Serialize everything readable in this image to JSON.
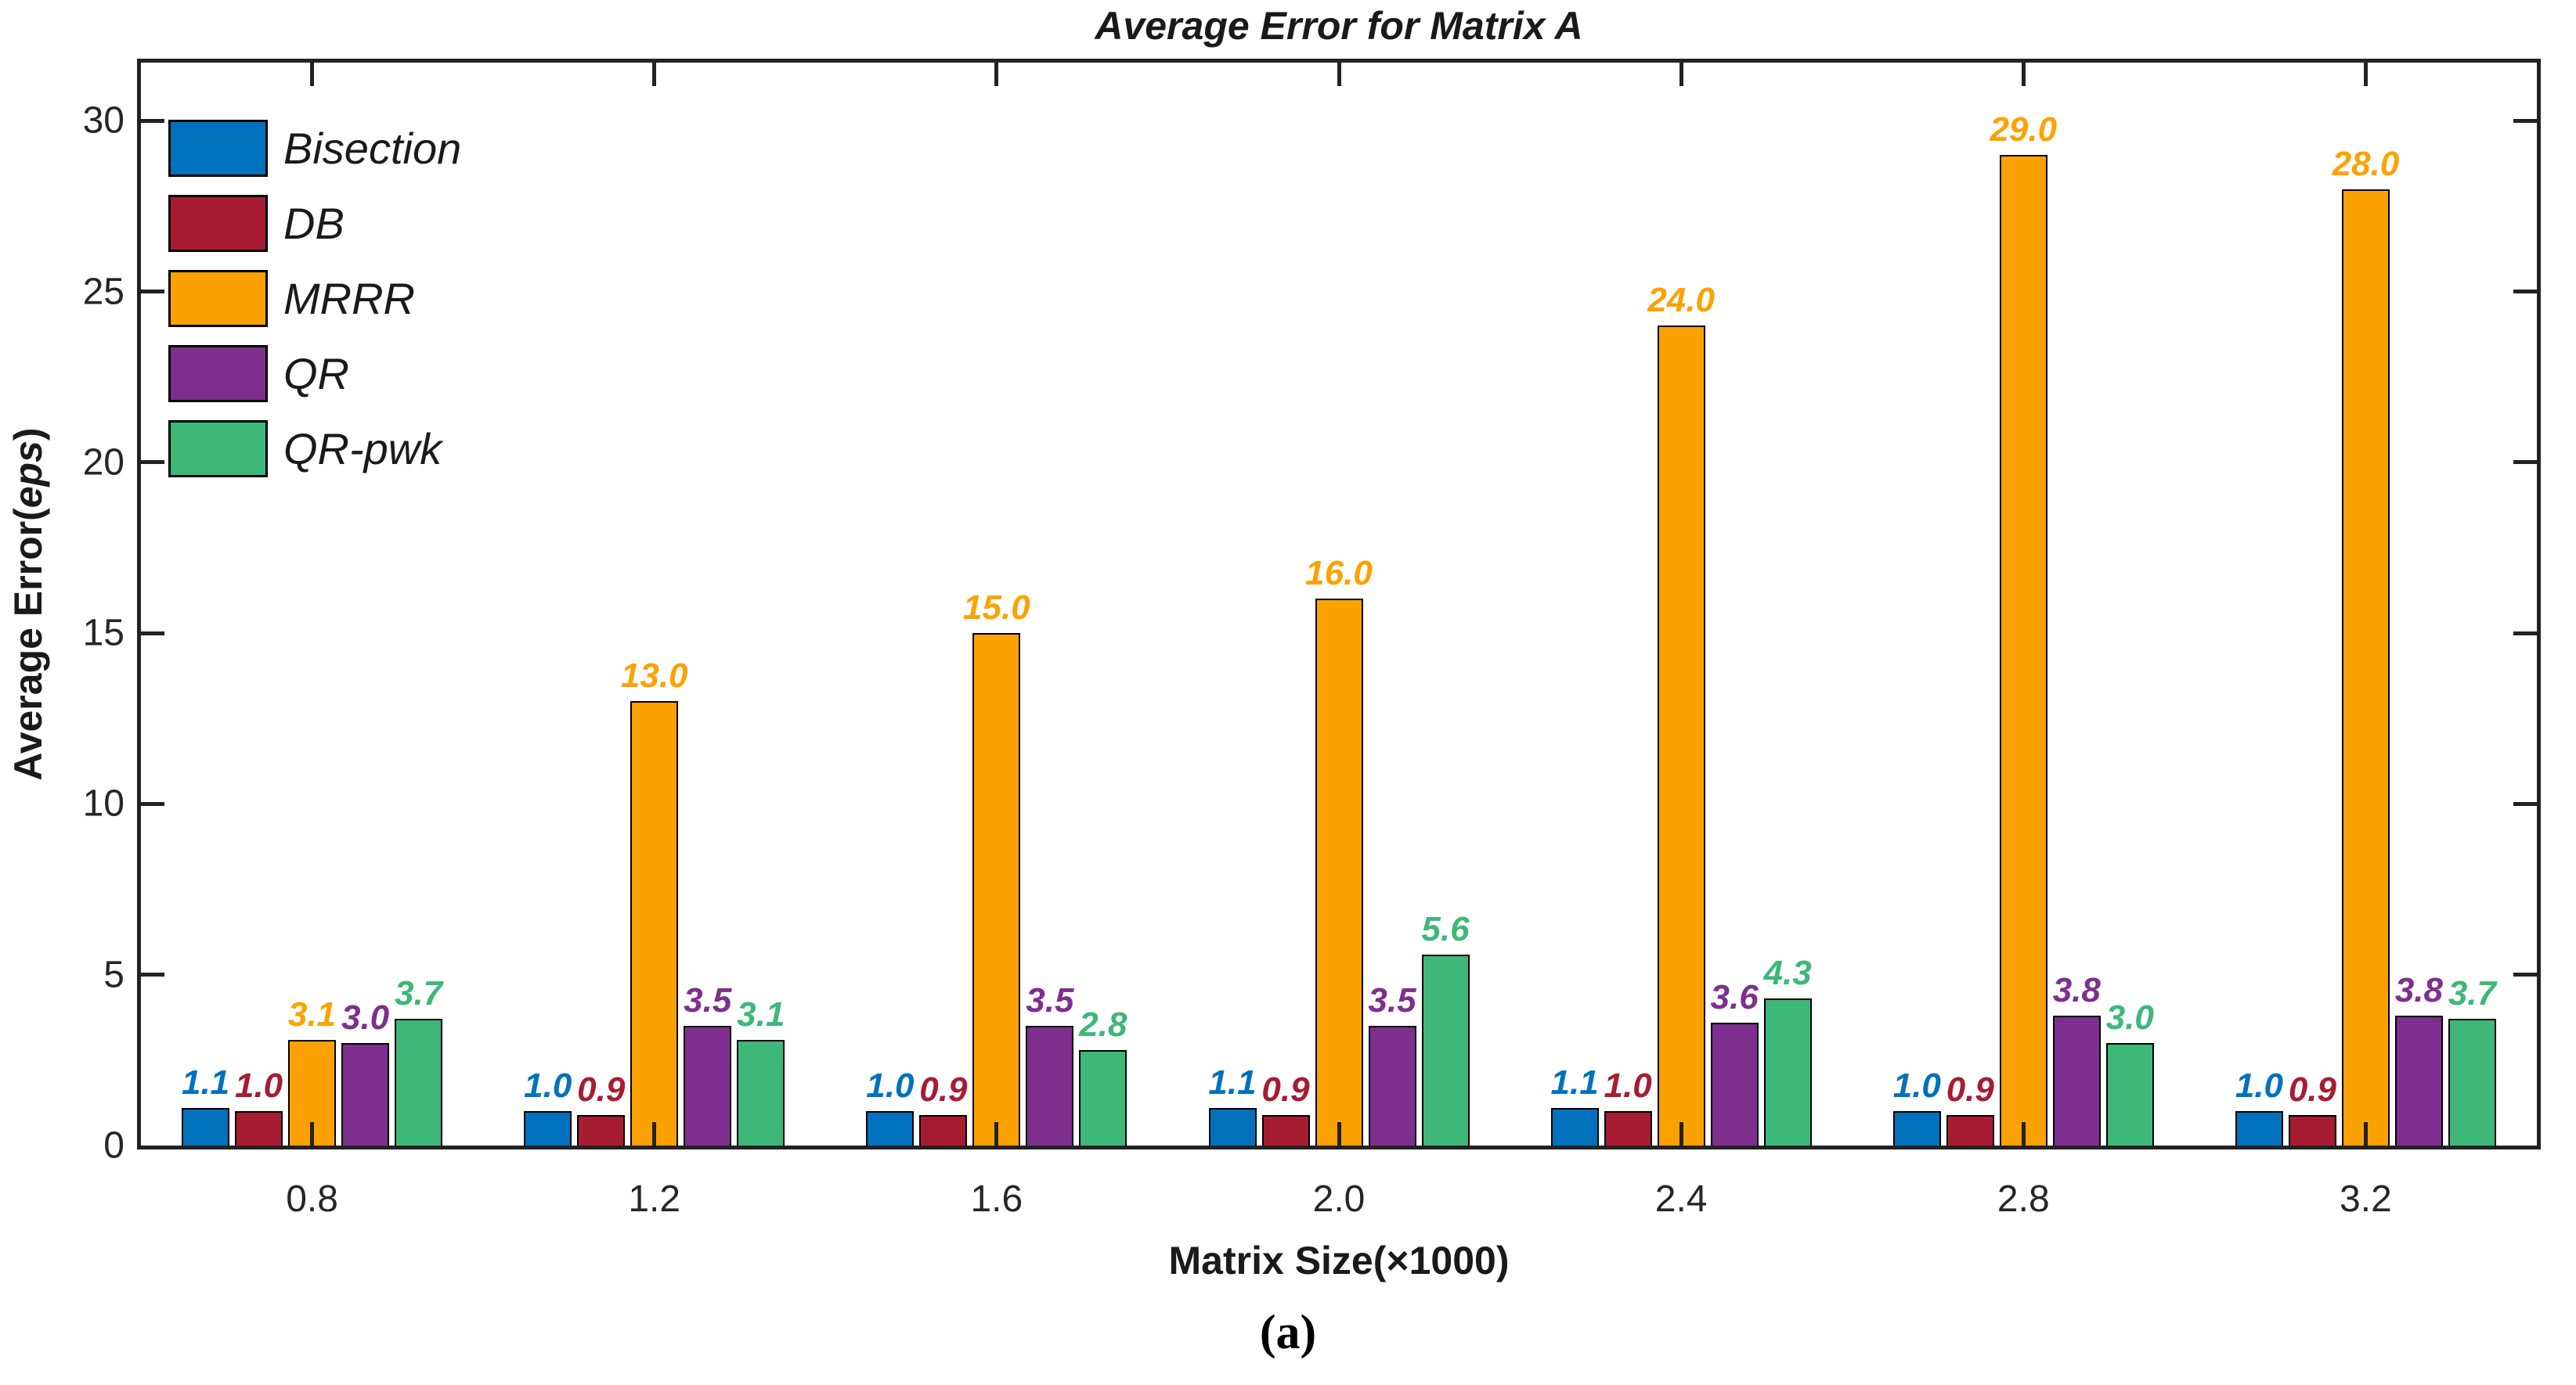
{
  "figure": {
    "title": "Average Error for Matrix A",
    "xlabel": "Matrix Size(×1000)",
    "ylabel": "Average Error(eps)",
    "ylabel_prefix": "Average Error(",
    "ylabel_italic": "eps",
    "ylabel_suffix": ")",
    "caption": "(a)",
    "background_color": "#ffffff",
    "axis_color": "#222222",
    "text_color": "#1a1a1a"
  },
  "chart_data": {
    "type": "bar",
    "title": "Average Error for Matrix A",
    "xlabel": "Matrix Size(×1000)",
    "ylabel": "Average Error(eps)",
    "categories": [
      "0.8",
      "1.2",
      "1.6",
      "2.0",
      "2.4",
      "2.8",
      "3.2"
    ],
    "series": [
      {
        "name": "Bisection",
        "color": "#0072BD",
        "values": [
          1.1,
          1.0,
          1.0,
          1.1,
          1.1,
          1.0,
          1.0
        ]
      },
      {
        "name": "DB",
        "color": "#A81C33",
        "values": [
          1.0,
          0.9,
          0.9,
          0.9,
          1.0,
          0.9,
          0.9
        ]
      },
      {
        "name": "MRRR",
        "color": "#FCA200",
        "values": [
          3.1,
          13.0,
          15.0,
          16.0,
          24.0,
          29.0,
          28.0
        ]
      },
      {
        "name": "QR",
        "color": "#7E2F8E",
        "values": [
          3.0,
          3.5,
          3.5,
          3.5,
          3.6,
          3.8,
          3.8
        ]
      },
      {
        "name": "QR-pwk",
        "color": "#3DB879",
        "values": [
          3.7,
          3.1,
          2.8,
          5.6,
          4.3,
          3.0,
          3.7
        ]
      }
    ],
    "bar_label_decimals": 1,
    "yticks": [
      0,
      5,
      10,
      15,
      20,
      25,
      30
    ],
    "ylim": [
      0,
      31.7
    ],
    "grid": false,
    "legend_position": "top-left",
    "tick_direction": "in"
  }
}
